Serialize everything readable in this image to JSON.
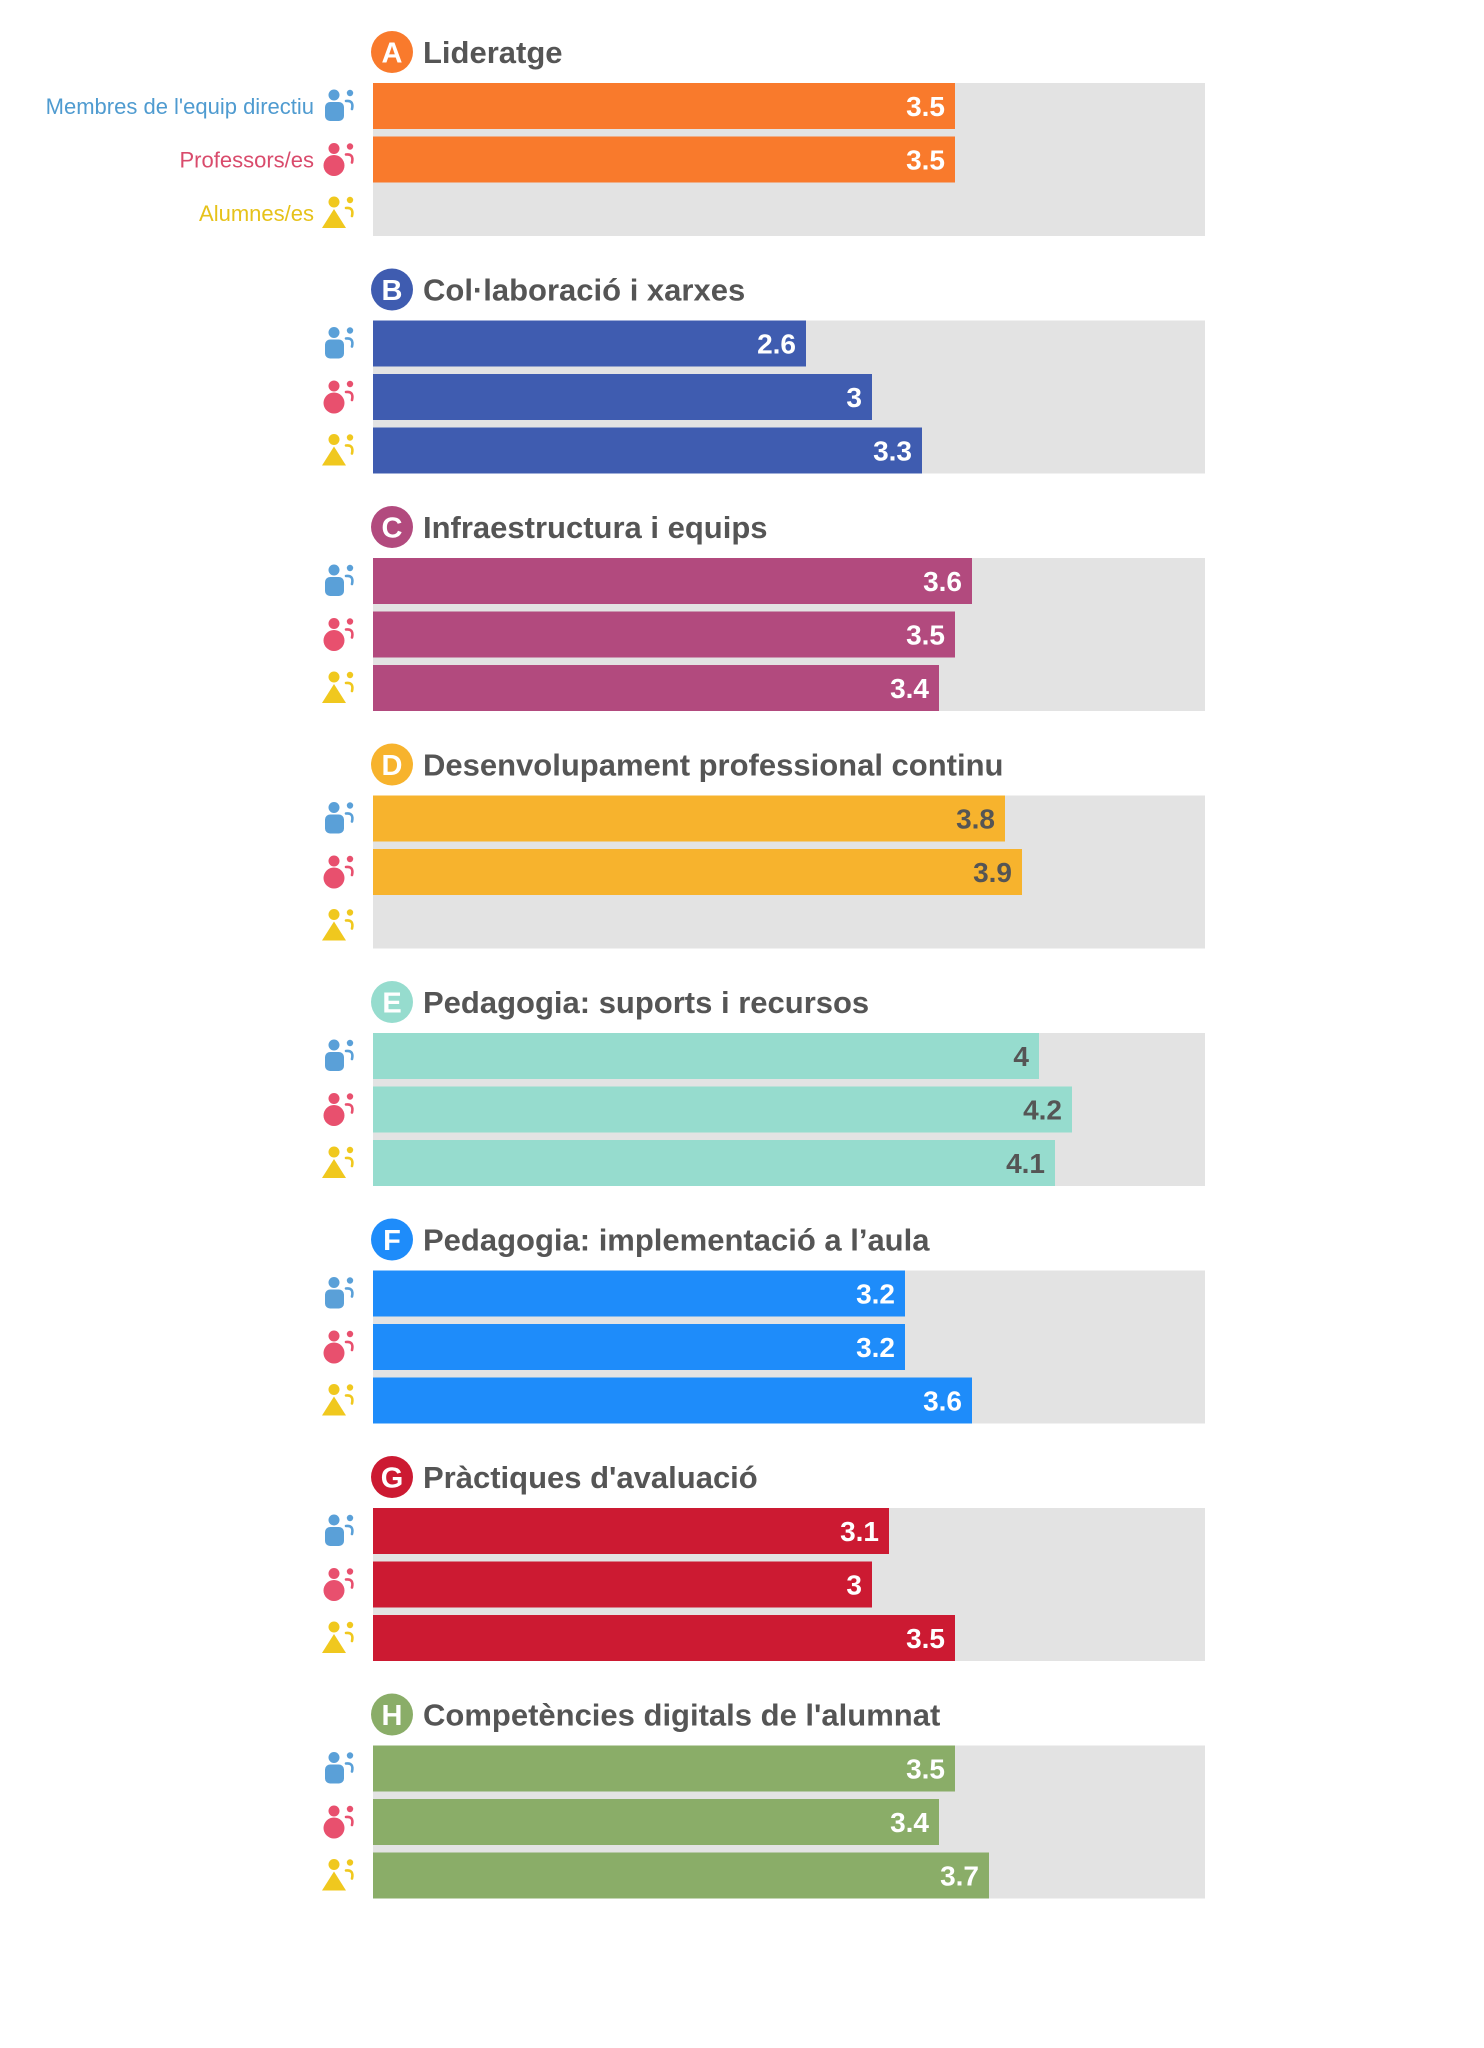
{
  "chart_data": {
    "type": "bar",
    "orientation": "horizontal",
    "xlim": [
      0,
      5
    ],
    "grid": false,
    "legend_placement": "left of the first group",
    "series": [
      {
        "name": "Membres de l'equip directiu",
        "color": "#5aa0d8",
        "icon": "person-icon-blue"
      },
      {
        "name": "Professors/es",
        "color": "#e8506e",
        "icon": "person-icon-pink"
      },
      {
        "name": "Alumnes/es",
        "color": "#f0c81e",
        "icon": "person-icon-yellow"
      }
    ],
    "categories": [
      {
        "letter": "A",
        "title": "Lideratge",
        "color": "#f97a2c",
        "value_text_color": "#ffffff",
        "values": [
          3.5,
          3.5,
          null
        ]
      },
      {
        "letter": "B",
        "title": "Col·laboració i xarxes",
        "color": "#3f5cb0",
        "value_text_color": "#ffffff",
        "values": [
          2.6,
          3,
          3.3
        ]
      },
      {
        "letter": "C",
        "title": "Infraestructura i equips",
        "color": "#b24a7e",
        "value_text_color": "#ffffff",
        "values": [
          3.6,
          3.5,
          3.4
        ]
      },
      {
        "letter": "D",
        "title": "Desenvolupament professional continu",
        "color": "#f7b32d",
        "value_text_color": "#555555",
        "values": [
          3.8,
          3.9,
          null
        ]
      },
      {
        "letter": "E",
        "title": "Pedagogia: suports i recursos",
        "color": "#96dcce",
        "value_text_color": "#555555",
        "values": [
          4,
          4.2,
          4.1
        ]
      },
      {
        "letter": "F",
        "title": "Pedagogia: implementació a l’aula",
        "color": "#1e8cfa",
        "value_text_color": "#ffffff",
        "values": [
          3.2,
          3.2,
          3.6
        ]
      },
      {
        "letter": "G",
        "title": "Pràctiques d'avaluació",
        "color": "#cc1a32",
        "value_text_color": "#ffffff",
        "values": [
          3.1,
          3,
          3.5
        ]
      },
      {
        "letter": "H",
        "title": "Competències digitals de l'alumnat",
        "color": "#8aad68",
        "value_text_color": "#ffffff",
        "values": [
          3.5,
          3.4,
          3.7
        ]
      }
    ]
  },
  "colors": {
    "track": "#e3e3e3",
    "title_text": "#555555",
    "legend_staff": "#4f9bd0",
    "legend_teachers": "#d94b6c",
    "legend_students": "#e6c21a"
  }
}
